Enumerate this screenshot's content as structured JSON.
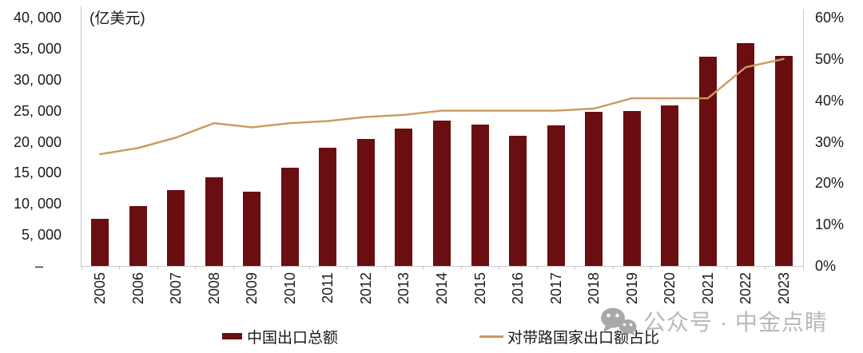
{
  "chart_data": {
    "type": "combo-bar-line",
    "title": "",
    "unit_label": "(亿美元)",
    "categories": [
      "2005",
      "2006",
      "2007",
      "2008",
      "2009",
      "2010",
      "2011",
      "2012",
      "2013",
      "2014",
      "2015",
      "2016",
      "2017",
      "2018",
      "2019",
      "2020",
      "2021",
      "2022",
      "2023"
    ],
    "series": [
      {
        "name": "中国出口总额",
        "type": "bar",
        "axis": "left",
        "color": "#6b0e11",
        "values": [
          7620,
          9690,
          12200,
          14310,
          12020,
          15780,
          18980,
          20490,
          22090,
          23420,
          22730,
          20980,
          22630,
          24870,
          25000,
          25900,
          33640,
          35940,
          33800
        ]
      },
      {
        "name": "对带路国家出口额占比",
        "type": "line",
        "axis": "right",
        "color": "#c99a5e",
        "values_percent": [
          27,
          28.5,
          31,
          34.5,
          33.5,
          34.5,
          35,
          36,
          36.5,
          37.5,
          37.5,
          37.5,
          37.5,
          38,
          40.5,
          40.5,
          40.5,
          48,
          50
        ]
      }
    ],
    "left_axis": {
      "min": 0,
      "max": 40000,
      "tick_values": [
        40000,
        35000,
        30000,
        25000,
        20000,
        15000,
        10000,
        5000,
        0
      ],
      "tick_labels": [
        "40, 000",
        "35, 000",
        "30, 000",
        "25, 000",
        "20, 000",
        "15, 000",
        "10, 000",
        "5, 000",
        "–"
      ]
    },
    "right_axis": {
      "min": 0,
      "max": 60,
      "tick_values": [
        60,
        50,
        40,
        30,
        20,
        10,
        0
      ],
      "tick_labels": [
        "60%",
        "50%",
        "40%",
        "30%",
        "20%",
        "10%",
        "0%"
      ]
    },
    "grid": false,
    "legend_position": "bottom"
  },
  "legend": {
    "bar_label": "中国出口总额",
    "line_label": "对带路国家出口额占比"
  },
  "watermark": {
    "icon": "wechat-icon",
    "text": "公众号 · 中金点睛"
  },
  "colors": {
    "bar": "#6b0e11",
    "line": "#c99a5e",
    "axis": "#c9c9c9",
    "text": "#1a1a1a",
    "watermark": "#b9b9b9",
    "watermark_icon": "#a8a8a8"
  }
}
